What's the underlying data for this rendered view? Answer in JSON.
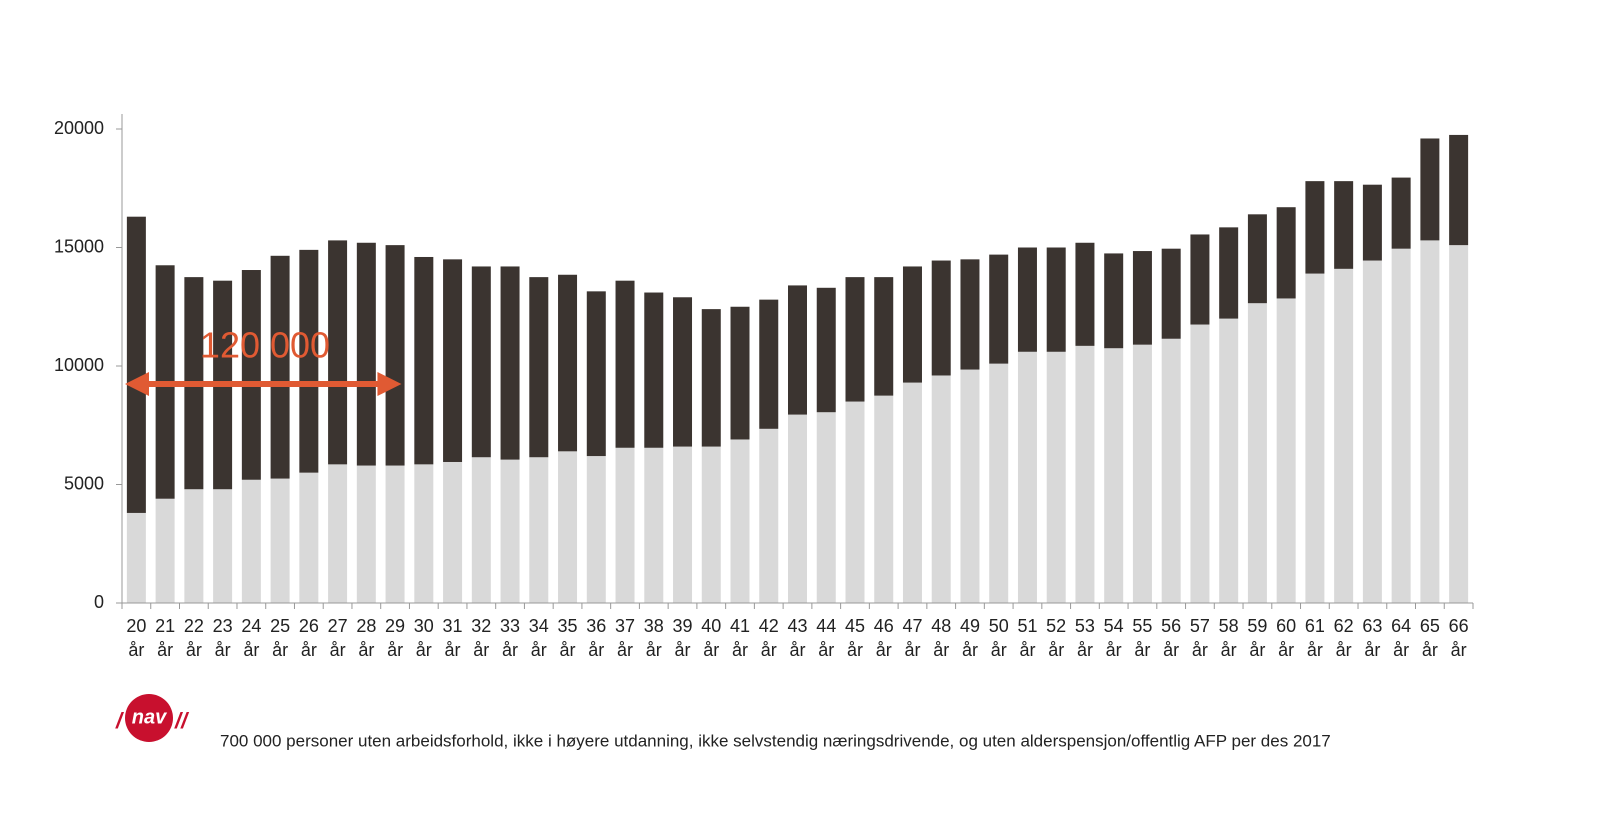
{
  "chart_data": {
    "type": "stacked-bar",
    "categories": [
      "20 år",
      "21 år",
      "22 år",
      "23 år",
      "24 år",
      "25 år",
      "26 år",
      "27 år",
      "28 år",
      "29 år",
      "30 år",
      "31 år",
      "32 år",
      "33 år",
      "34 år",
      "35 år",
      "36 år",
      "37 år",
      "38 år",
      "39 år",
      "40 år",
      "41 år",
      "42 år",
      "43 år",
      "44 år",
      "45 år",
      "46 år",
      "47 år",
      "48 år",
      "49 år",
      "50 år",
      "51 år",
      "52 år",
      "53 år",
      "54 år",
      "55 år",
      "56 år",
      "57 år",
      "58 år",
      "59 år",
      "60 år",
      "61 år",
      "62 år",
      "63 år",
      "64 år",
      "65 år",
      "66 år"
    ],
    "series": [
      {
        "color": "#d9d9d9",
        "values": [
          3800,
          4400,
          4800,
          4800,
          5200,
          5250,
          5500,
          5850,
          5800,
          5800,
          5850,
          5950,
          6150,
          6050,
          6150,
          6400,
          6200,
          6550,
          6550,
          6600,
          6600,
          6900,
          7350,
          7950,
          8050,
          8500,
          8750,
          9300,
          9600,
          9850,
          10100,
          10600,
          10600,
          10850,
          10750,
          10900,
          11150,
          11750,
          12000,
          12650,
          12850,
          13900,
          14100,
          14450,
          14950,
          15300,
          15100
        ]
      },
      {
        "color": "#3b3430",
        "values": [
          12500,
          9850,
          8950,
          8800,
          8850,
          9400,
          9400,
          9450,
          9400,
          9300,
          8750,
          8550,
          8050,
          8150,
          7600,
          7450,
          6950,
          7050,
          6550,
          6300,
          5800,
          5600,
          5450,
          5450,
          5250,
          5250,
          5000,
          4900,
          4850,
          4650,
          4600,
          4400,
          4400,
          4350,
          4000,
          3950,
          3800,
          3800,
          3850,
          3750,
          3850,
          3900,
          3700,
          3200,
          3000,
          4300,
          4650
        ]
      }
    ],
    "ylim": [
      0,
      20000
    ],
    "yticks": [
      0,
      5000,
      10000,
      15000,
      20000
    ],
    "annotation": "120 000",
    "annotation_color": "#e05a33",
    "logo": "nav",
    "footnote": "700 000 personer uten arbeidsforhold, ikke i høyere utdanning, ikke selvstendig næringsdrivende, og uten alderspensjon/offentlig AFP per des 2017"
  }
}
